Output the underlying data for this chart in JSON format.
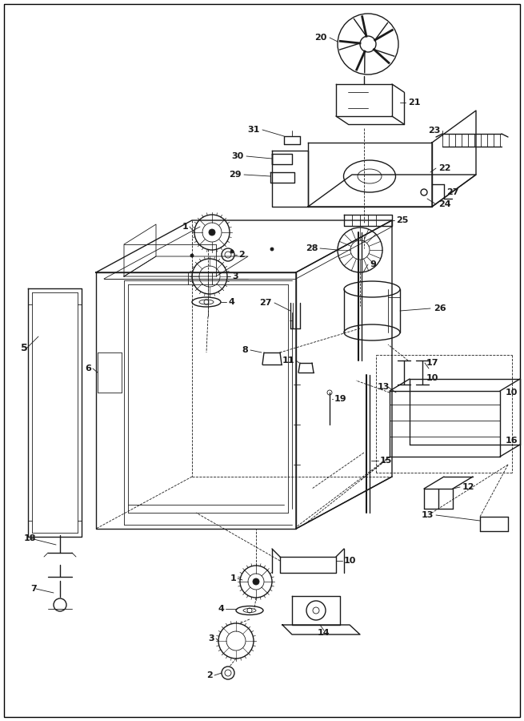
{
  "bg_color": "#ffffff",
  "line_color": "#1a1a1a",
  "figsize": [
    6.55,
    9.0
  ],
  "dpi": 100,
  "border": true
}
